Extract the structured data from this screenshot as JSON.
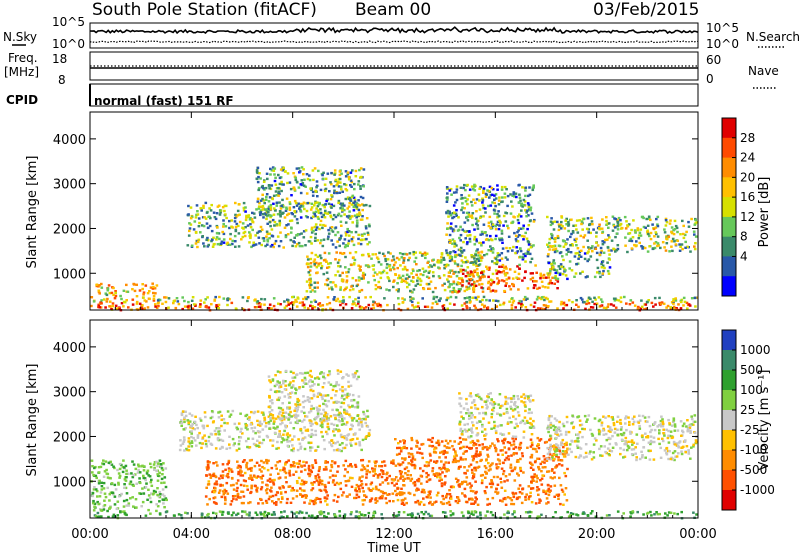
{
  "header": {
    "station": "South Pole Station (fitACF)",
    "beam": "Beam 00",
    "date": "03/Feb/2015"
  },
  "params": {
    "nsky_label": "N.Sky",
    "nsearch_label": "N.Search",
    "left_ticks": [
      "10^5",
      "10^0"
    ],
    "right_ticks": [
      "10^5",
      "10^0"
    ],
    "freq_label_1": "Freq.",
    "freq_label_2": "[MHz]",
    "freq_ticks": [
      "18",
      "8"
    ],
    "nave_label": "Nave",
    "nave_ticks": [
      "60",
      "0"
    ],
    "cpid_label": "CPID",
    "cpid_value": "normal (fast) 151 RF"
  },
  "chart_data": [
    {
      "type": "heatmap",
      "name": "power",
      "ylabel": "Slant Range [km]",
      "ylim": [
        180,
        4600
      ],
      "y_ticks": [
        1000,
        2000,
        3000,
        4000
      ],
      "xlim": [
        0,
        24
      ],
      "colorbar": {
        "label": "Power [dB]",
        "ticks": [
          "28",
          "24",
          "20",
          "16",
          "12",
          "8",
          "4"
        ],
        "colors": [
          "#e00000",
          "#ff4a00",
          "#ff8c00",
          "#ffc000",
          "#d6e000",
          "#66c85a",
          "#3a8a6a",
          "#2858a8",
          "#0000ff"
        ]
      },
      "bands": [
        {
          "t": [
            0.0,
            23.9
          ],
          "r": [
            200,
            380
          ],
          "level": 0.8
        },
        {
          "t": [
            0.0,
            2.6
          ],
          "r": [
            380,
            800
          ],
          "level": 0.6
        },
        {
          "t": [
            2.6,
            23.9
          ],
          "r": [
            380,
            500
          ],
          "level": 0.4
        },
        {
          "t": [
            3.8,
            11.0
          ],
          "r": [
            1600,
            2600
          ],
          "level": 0.35
        },
        {
          "t": [
            6.5,
            10.8
          ],
          "r": [
            2300,
            3400
          ],
          "level": 0.35
        },
        {
          "t": [
            8.5,
            15.5
          ],
          "r": [
            600,
            1500
          ],
          "level": 0.5
        },
        {
          "t": [
            14.5,
            18.5
          ],
          "r": [
            600,
            1200
          ],
          "level": 0.8
        },
        {
          "t": [
            14.0,
            17.5
          ],
          "r": [
            1200,
            3000
          ],
          "level": 0.3
        },
        {
          "t": [
            18.0,
            23.9
          ],
          "r": [
            1500,
            2300
          ],
          "level": 0.4
        },
        {
          "t": [
            18.0,
            20.5
          ],
          "r": [
            900,
            1500
          ],
          "level": 0.3
        }
      ]
    },
    {
      "type": "heatmap",
      "name": "velocity",
      "ylabel": "Slant Range [km]",
      "xlabel": "Time UT",
      "ylim": [
        180,
        4600
      ],
      "y_ticks": [
        1000,
        2000,
        3000,
        4000
      ],
      "xlim": [
        0,
        24
      ],
      "x_ticks": [
        "00:00",
        "04:00",
        "08:00",
        "12:00",
        "16:00",
        "20:00",
        "00:00"
      ],
      "colorbar": {
        "label": "Velocity [m s⁻¹]",
        "ticks": [
          "1000",
          "500",
          "100",
          "25",
          "-25",
          "-100",
          "-500",
          "-1000"
        ],
        "colors": [
          "#2040c0",
          "#3a8a6a",
          "#2ea02e",
          "#80d040",
          "#c8c8c8",
          "#ffc000",
          "#ff8c00",
          "#ff5000",
          "#e00000"
        ]
      },
      "bands": [
        {
          "t": [
            0.0,
            23.9
          ],
          "r": [
            200,
            360
          ],
          "level": 0.5
        },
        {
          "t": [
            0.0,
            3.0
          ],
          "r": [
            360,
            1500
          ],
          "level": 0.3
        },
        {
          "t": [
            3.5,
            11.0
          ],
          "r": [
            1700,
            2600
          ],
          "level": 0.0
        },
        {
          "t": [
            7.0,
            10.6
          ],
          "r": [
            2300,
            3500
          ],
          "level": 0.0
        },
        {
          "t": [
            4.5,
            12.0
          ],
          "r": [
            500,
            1500
          ],
          "level": -0.6
        },
        {
          "t": [
            12.0,
            18.8
          ],
          "r": [
            500,
            2000
          ],
          "level": -0.6
        },
        {
          "t": [
            14.5,
            17.5
          ],
          "r": [
            2000,
            3000
          ],
          "level": 0.0
        },
        {
          "t": [
            18.0,
            23.9
          ],
          "r": [
            1500,
            2500
          ],
          "level": 0.0
        }
      ]
    }
  ]
}
